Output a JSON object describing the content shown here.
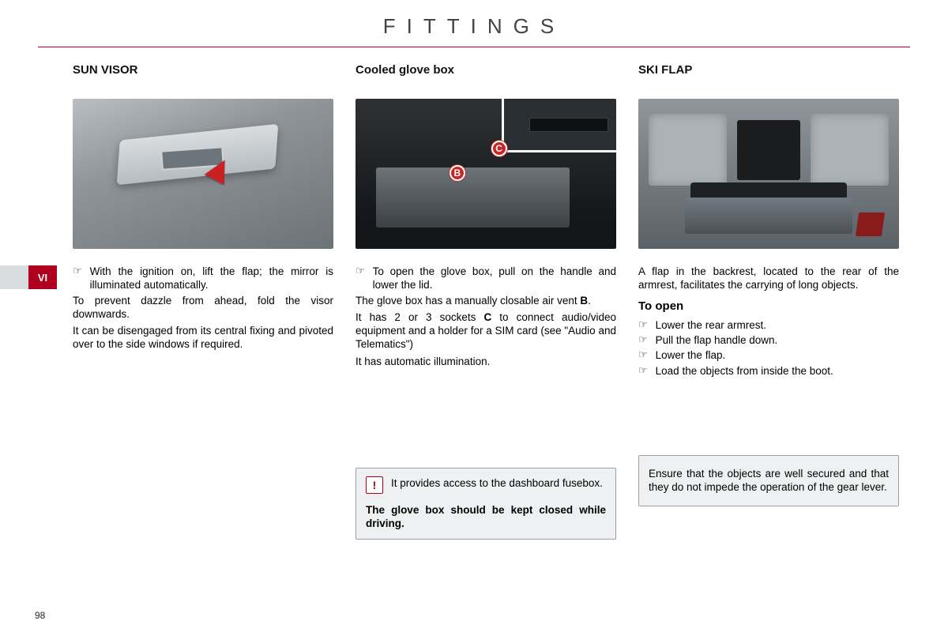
{
  "page": {
    "title": "FITTINGS",
    "section_marker": "VI",
    "number": "98"
  },
  "colors": {
    "accent": "#b00020",
    "text": "#000000",
    "box_bg": "#eef0f1",
    "box_border": "#9aa0a6"
  },
  "col1": {
    "heading": "SUN VISOR",
    "bullet1": "With the ignition on, lift the flap; the mirror is illuminated automatically.",
    "p1": "To prevent dazzle from ahead, fold the visor downwards.",
    "p2": "It can be disengaged from its central fixing and pivoted over to the side windows if required."
  },
  "col2": {
    "heading": "Cooled glove box",
    "markerB": "B",
    "markerC": "C",
    "bullet1": "To open the glove box, pull on the handle and lower the lid.",
    "p1_a": "The glove box has a manually closable air vent ",
    "p1_b": "B",
    "p1_c": ".",
    "p2_a": "It has 2 or 3 sockets ",
    "p2_b": "C",
    "p2_c": " to connect audio/video equipment and a holder for a SIM card (see \"Audio and Telematics\")",
    "p3": "It has automatic illumination.",
    "box_line1": "It provides access to the dashboard fusebox.",
    "box_strong": "The glove box should be kept closed while driving.",
    "warn_glyph": "!"
  },
  "col3": {
    "heading": "SKI FLAP",
    "intro": "A flap in the backrest, located to the rear of the armrest, facilitates the carrying of long objects.",
    "sub": "To open",
    "b1": "Lower the rear armrest.",
    "b2": "Pull the flap handle down.",
    "b3": "Lower the flap.",
    "b4": "Load the objects from inside the boot.",
    "box": "Ensure that the objects are well secured and that they do not impede the operation of the gear lever."
  },
  "glyphs": {
    "hand": "☞"
  }
}
